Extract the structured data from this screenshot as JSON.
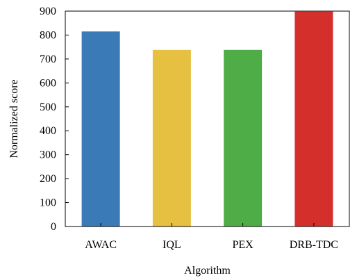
{
  "chart_data": {
    "type": "bar",
    "title": "",
    "xlabel": "Algorithm",
    "ylabel": "Normalized score",
    "categories": [
      "AWAC",
      "IQL",
      "PEX",
      "DRB-TDC"
    ],
    "values": [
      815,
      738,
      738,
      898
    ],
    "colors": [
      "#3a7ab6",
      "#e6c040",
      "#4fad47",
      "#d42f2b"
    ],
    "ylim": [
      0,
      900
    ],
    "yticks": [
      "0",
      "100",
      "200",
      "300",
      "400",
      "500",
      "600",
      "700",
      "800",
      "900"
    ],
    "grid": false,
    "legend": "none"
  }
}
